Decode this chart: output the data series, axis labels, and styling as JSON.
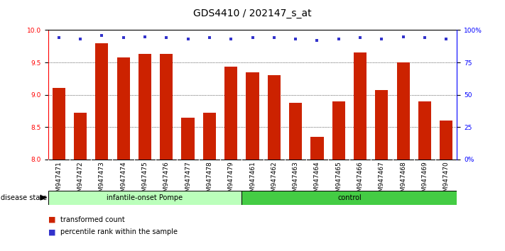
{
  "title": "GDS4410 / 202147_s_at",
  "samples": [
    "GSM947471",
    "GSM947472",
    "GSM947473",
    "GSM947474",
    "GSM947475",
    "GSM947476",
    "GSM947477",
    "GSM947478",
    "GSM947479",
    "GSM947461",
    "GSM947462",
    "GSM947463",
    "GSM947464",
    "GSM947465",
    "GSM947466",
    "GSM947467",
    "GSM947468",
    "GSM947469",
    "GSM947470"
  ],
  "bar_values": [
    9.11,
    8.72,
    9.8,
    9.58,
    9.63,
    9.63,
    8.65,
    8.72,
    9.43,
    9.35,
    9.3,
    8.87,
    8.35,
    8.9,
    9.65,
    9.07,
    9.5,
    8.9,
    8.6
  ],
  "percentile_values": [
    94,
    93,
    96,
    94,
    95,
    94,
    93,
    94,
    93,
    94,
    94,
    93,
    92,
    93,
    94,
    93,
    95,
    94,
    93
  ],
  "ylim_left": [
    8.0,
    10.0
  ],
  "ylim_right": [
    0,
    100
  ],
  "yticks_left": [
    8.0,
    8.5,
    9.0,
    9.5,
    10.0
  ],
  "yticks_right": [
    0,
    25,
    50,
    75,
    100
  ],
  "bar_color": "#cc2200",
  "percentile_color": "#3333cc",
  "group1_label": "infantile-onset Pompe",
  "group2_label": "control",
  "group1_count": 9,
  "group2_count": 10,
  "group1_color": "#bbffbb",
  "group2_color": "#44cc44",
  "disease_state_label": "disease state",
  "legend_bar_label": "transformed count",
  "legend_pct_label": "percentile rank within the sample",
  "title_fontsize": 10,
  "tick_fontsize": 6.5,
  "label_fontsize": 7.5
}
